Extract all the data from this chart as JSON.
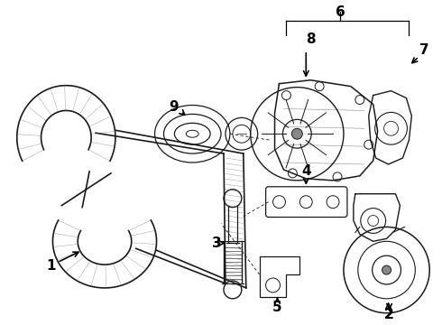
{
  "bg_color": "#ffffff",
  "line_color": "#1a1a1a",
  "label_color": "#000000",
  "fig_width": 4.9,
  "fig_height": 3.6,
  "dpi": 100,
  "belt_color": "#2a2a2a",
  "component_lw": 1.0
}
